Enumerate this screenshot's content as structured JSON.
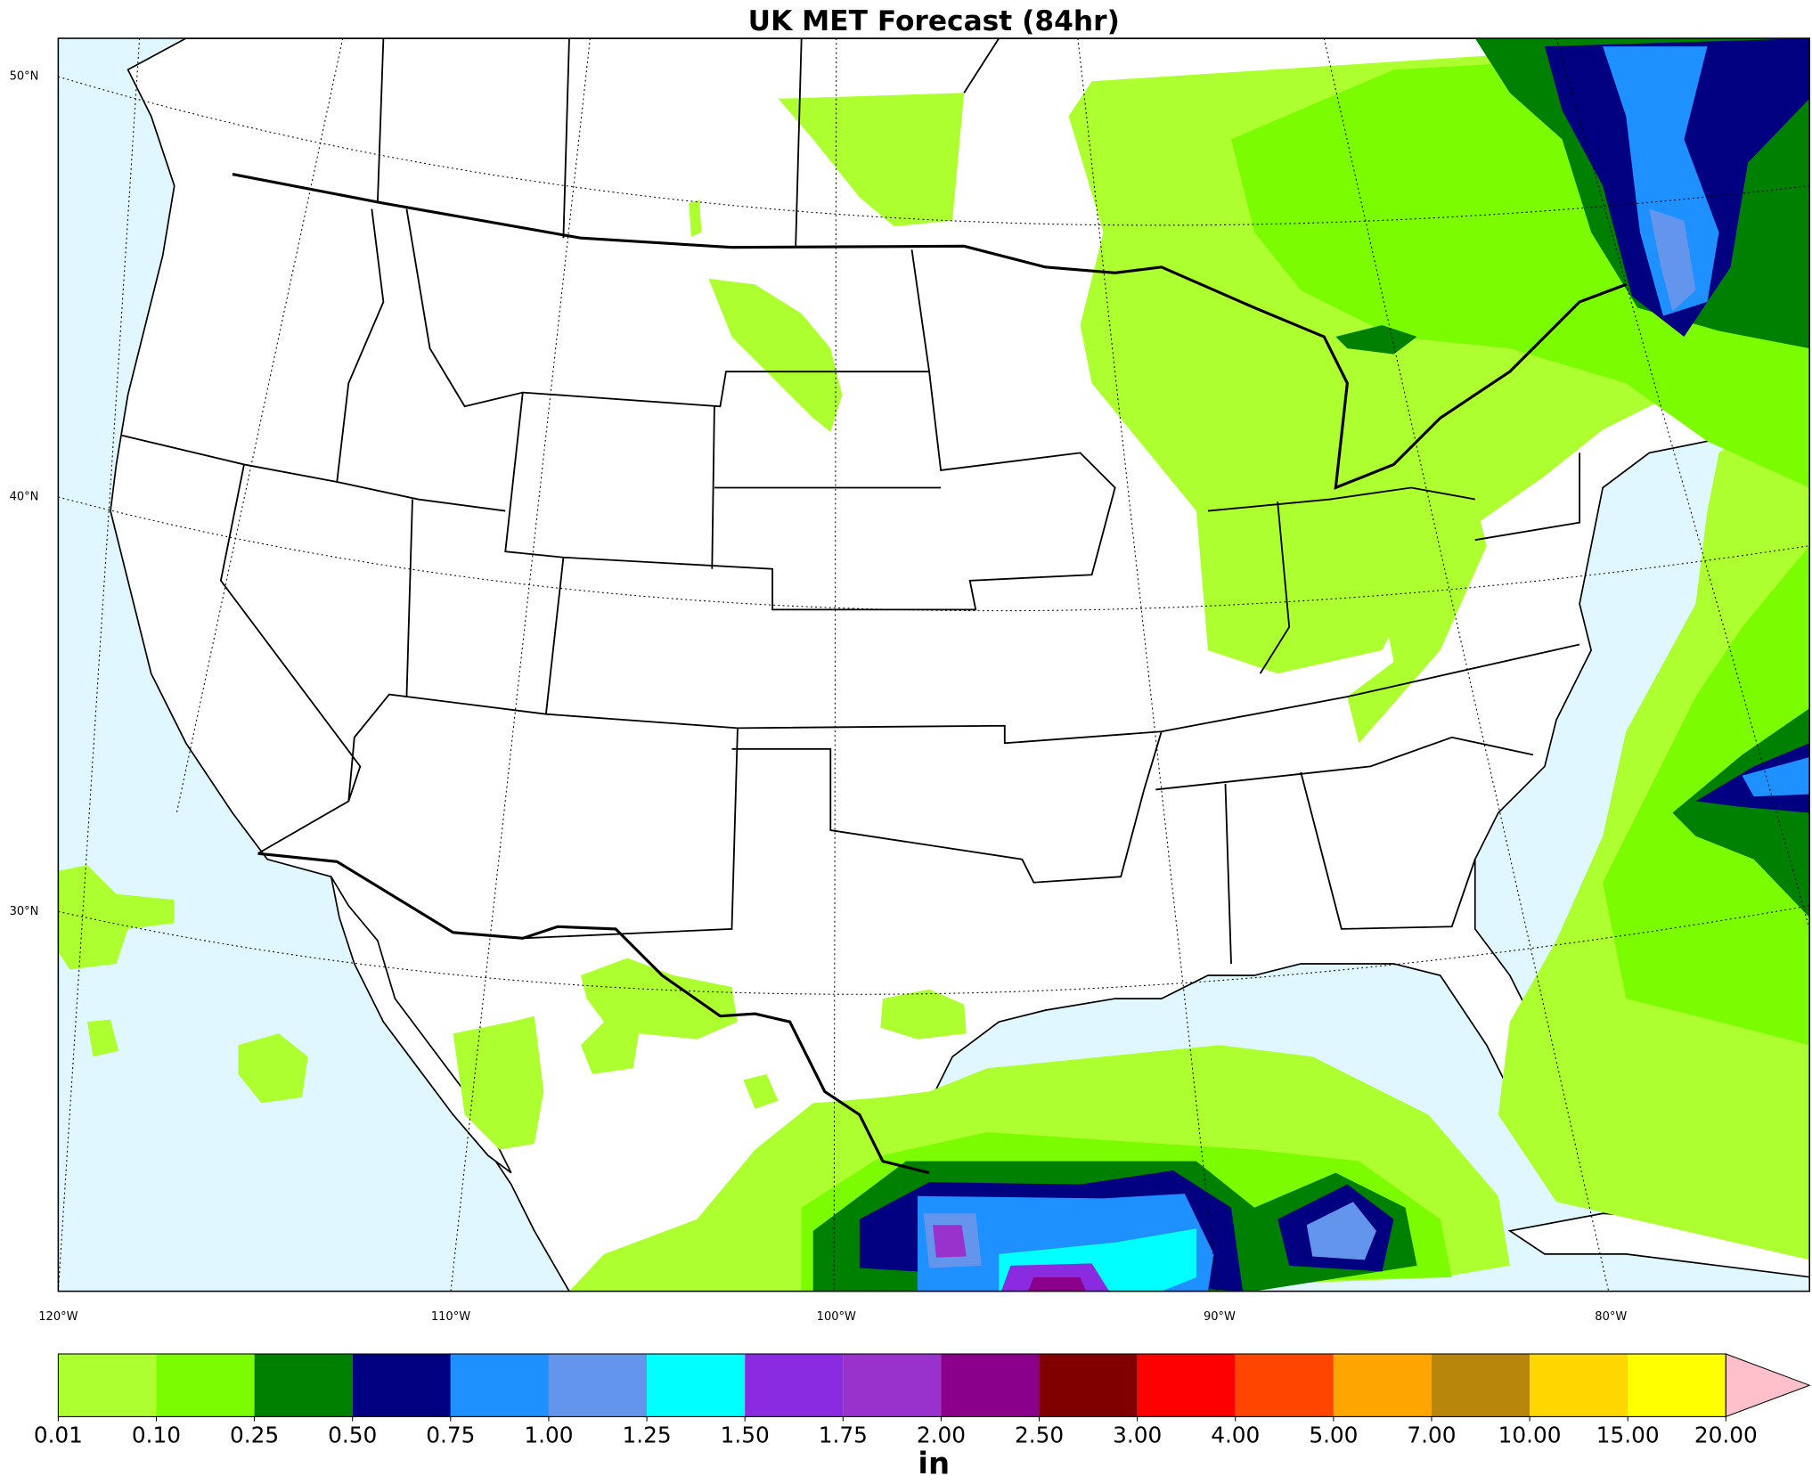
{
  "title": "UK MET Forecast (84hr)",
  "map": {
    "lat_labels": [
      "50°N",
      "40°N",
      "30°N"
    ],
    "lon_labels": [
      "120°W",
      "110°W",
      "100°W",
      "90°W",
      "80°W"
    ]
  },
  "colorbar": {
    "label": "in",
    "ticks": [
      0.01,
      {
        "value": 0.1,
        "label": "0.10"
      },
      0.25,
      {
        "value": 0.5,
        "label": "0.50"
      },
      0.75,
      {
        "value": 1,
        "label": "1.00"
      },
      1.25,
      {
        "value": 1.5,
        "label": "1.50"
      },
      1.75,
      {
        "value": 2,
        "label": "2.00"
      },
      {
        "value": 2.5,
        "label": "2.50"
      },
      {
        "value": 3,
        "label": "3.00"
      },
      {
        "value": 4,
        "label": "4.00"
      },
      {
        "value": 5,
        "label": "5.00"
      },
      {
        "value": 7,
        "label": "7.00"
      },
      {
        "value": 10,
        "label": "10.00"
      },
      {
        "value": 15,
        "label": "15.00"
      },
      {
        "value": 20,
        "label": "20.00"
      }
    ],
    "colors": [
      "#adff2f",
      "#7cfc00",
      "#008000",
      "#000080",
      "#1e90ff",
      "#6495ed",
      "#00ffff",
      "#8a2be2",
      "#9932cc",
      "#8b008b",
      "#800000",
      "#ff0000",
      "#ff4500",
      "#ffa500",
      "#b8860b",
      "#ffd700",
      "#ffff00"
    ],
    "extend_color": "#ffc0cb"
  }
}
